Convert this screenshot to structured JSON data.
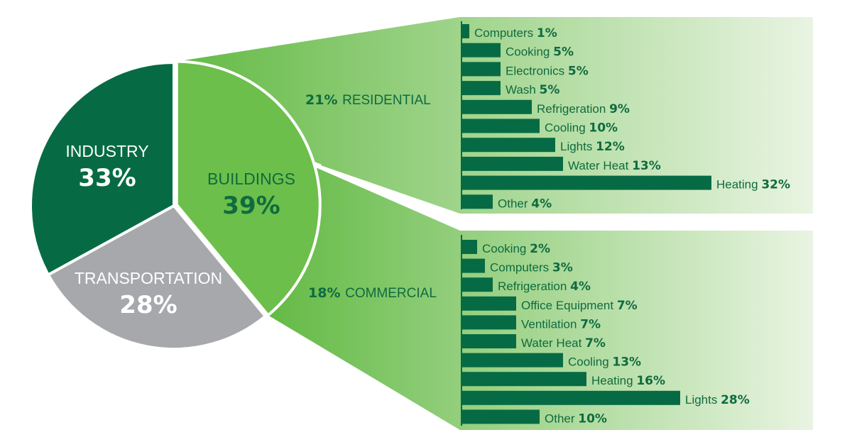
{
  "colors": {
    "industry": "#066b44",
    "transportation": "#a7a8ab",
    "buildings": "#6cbf4a",
    "bar": "#066b44",
    "label_text": "#0f6b3f",
    "fan_dark": "#64ba45",
    "fan_light": "#e9f4e2"
  },
  "chart_data": [
    {
      "type": "pie",
      "slices": [
        {
          "name": "INDUSTRY",
          "value": 33,
          "value_label": "33%"
        },
        {
          "name": "BUILDINGS",
          "value": 39,
          "value_label": "39%"
        },
        {
          "name": "TRANSPORTATION",
          "value": 28,
          "value_label": "28%"
        }
      ]
    },
    {
      "type": "bar",
      "orientation": "horizontal",
      "segment_value": "21%",
      "segment_name": "RESIDENTIAL",
      "categories": [
        "Computers",
        "Cooking",
        "Electronics",
        "Wash",
        "Refrigeration",
        "Cooling",
        "Lights",
        "Water Heat",
        "Heating",
        "Other"
      ],
      "values": [
        1,
        5,
        5,
        5,
        9,
        10,
        12,
        13,
        32,
        4
      ],
      "value_labels": [
        "1%",
        "5%",
        "5%",
        "5%",
        "9%",
        "10%",
        "12%",
        "13%",
        "32%",
        "4%"
      ]
    },
    {
      "type": "bar",
      "orientation": "horizontal",
      "segment_value": "18%",
      "segment_name": "COMMERCIAL",
      "categories": [
        "Cooking",
        "Computers",
        "Refrigeration",
        "Office Equipment",
        "Ventilation",
        "Water Heat",
        "Cooling",
        "Heating",
        "Lights",
        "Other"
      ],
      "values": [
        2,
        3,
        4,
        7,
        7,
        7,
        13,
        16,
        28,
        10
      ],
      "value_labels": [
        "2%",
        "3%",
        "4%",
        "7%",
        "7%",
        "7%",
        "13%",
        "16%",
        "28%",
        "10%"
      ]
    }
  ]
}
